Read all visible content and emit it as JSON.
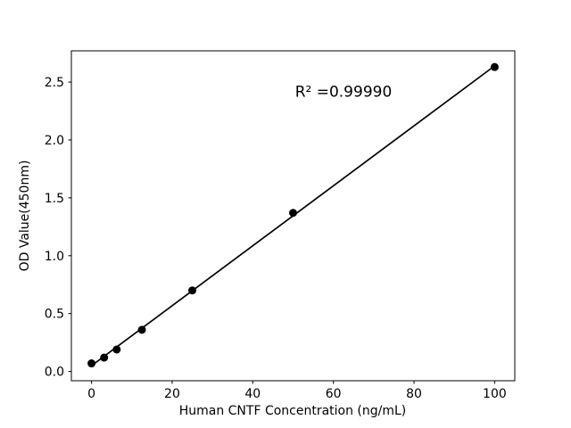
{
  "figure": {
    "background_color": "#ffffff"
  },
  "chart_data": {
    "type": "scatter",
    "title": "",
    "xlabel": "Human CNTF Concentration (ng/mL)",
    "ylabel": "OD Value(450nm)",
    "annotation": "R² =0.99990",
    "annotation_pos": {
      "x": 62.5,
      "y": 2.42
    },
    "x": [
      0,
      3.125,
      6.25,
      12.5,
      25,
      50,
      100
    ],
    "y": [
      0.07,
      0.12,
      0.19,
      0.36,
      0.7,
      1.37,
      2.63
    ],
    "fit_line": {
      "x": [
        0,
        100
      ],
      "y": [
        0.05,
        2.64
      ]
    },
    "x_ticks": [
      0,
      20,
      40,
      60,
      80,
      100
    ],
    "y_ticks": [
      0.0,
      0.5,
      1.0,
      1.5,
      2.0,
      2.5
    ],
    "xlim": [
      -5,
      105
    ],
    "ylim": [
      -0.08,
      2.77
    ],
    "grid": false,
    "legend": "none",
    "marker_color": "#000000",
    "line_color": "#000000",
    "axis_color": "#000000"
  }
}
